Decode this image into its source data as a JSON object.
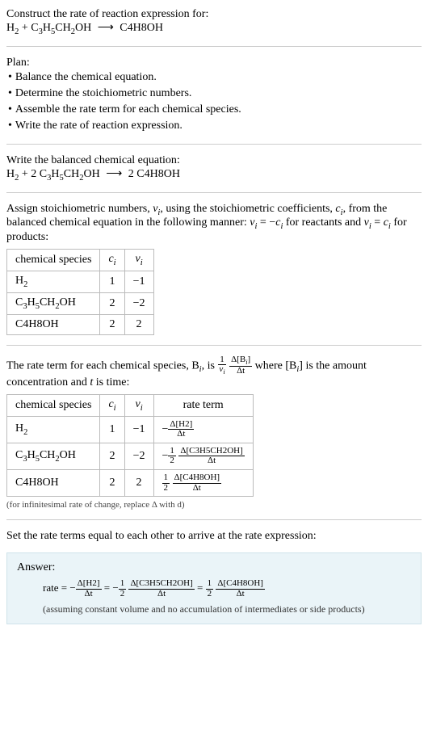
{
  "header": {
    "construct": "Construct the rate of reaction expression for:",
    "eq_unbalanced": {
      "lhs1": "H",
      "lhs1_sub": "2",
      "plus": " + ",
      "lhs2a": "C",
      "lhs2a_sub": "3",
      "lhs2b": "H",
      "lhs2b_sub": "5",
      "lhs2c": "CH",
      "lhs2c_sub": "2",
      "lhs2d": "OH",
      "arrow": "⟶",
      "rhs": "C4H8OH"
    }
  },
  "plan": {
    "title": "Plan:",
    "bullet": "•",
    "items": [
      "Balance the chemical equation.",
      "Determine the stoichiometric numbers.",
      "Assemble the rate term for each chemical species.",
      "Write the rate of reaction expression."
    ]
  },
  "balanced": {
    "title": "Write the balanced chemical equation:",
    "eq": {
      "lhs1": "H",
      "lhs1_sub": "2",
      "plus": " + 2 ",
      "lhs2a": "C",
      "lhs2a_sub": "3",
      "lhs2b": "H",
      "lhs2b_sub": "5",
      "lhs2c": "CH",
      "lhs2c_sub": "2",
      "lhs2d": "OH",
      "arrow": "⟶",
      "rcoef": " 2 ",
      "rhs": "C4H8OH"
    }
  },
  "assign": {
    "text_a": "Assign stoichiometric numbers, ",
    "nu_i": "ν",
    "nu_i_sub": "i",
    "text_b": ", using the stoichiometric coefficients, ",
    "c_i": "c",
    "c_i_sub": "i",
    "text_c": ", from the balanced chemical equation in the following manner: ",
    "eq1_l": "ν",
    "eq1_l_sub": "i",
    "eq1_mid": " = −",
    "eq1_r": "c",
    "eq1_r_sub": "i",
    "text_d": " for reactants and ",
    "eq2_l": "ν",
    "eq2_l_sub": "i",
    "eq2_mid": " = ",
    "eq2_r": "c",
    "eq2_r_sub": "i",
    "text_e": " for products:"
  },
  "table1": {
    "h1": "chemical species",
    "h2": "c",
    "h2_sub": "i",
    "h3": "ν",
    "h3_sub": "i",
    "rows": [
      {
        "sp_a": "H",
        "sp_a_sub": "2",
        "ci": "1",
        "nu": "−1"
      },
      {
        "sp_a": "C",
        "sp_a_sub": "3",
        "sp_b": "H",
        "sp_b_sub": "5",
        "sp_c": "CH",
        "sp_c_sub": "2",
        "sp_d": "OH",
        "ci": "2",
        "nu": "−2"
      },
      {
        "sp_a": "C4H8OH",
        "ci": "2",
        "nu": "2"
      }
    ]
  },
  "rateterm_intro": {
    "a": "The rate term for each chemical species, B",
    "a_sub": "i",
    "b": ", is ",
    "f1_num": "1",
    "f1_den_a": "ν",
    "f1_den_sub": "i",
    "f2_num_a": "Δ[B",
    "f2_num_sub": "i",
    "f2_num_b": "]",
    "f2_den": "Δt",
    "c": " where [B",
    "c_sub": "i",
    "d": "] is the amount concentration and ",
    "t": "t",
    "e": " is time:"
  },
  "table2": {
    "h1": "chemical species",
    "h2": "c",
    "h2_sub": "i",
    "h3": "ν",
    "h3_sub": "i",
    "h4": "rate term",
    "rows": [
      {
        "sp_a": "H",
        "sp_a_sub": "2",
        "ci": "1",
        "nu": "−1",
        "neg": "−",
        "coef_num": "",
        "coef_den": "",
        "dnum": "Δ[H2]",
        "dden": "Δt"
      },
      {
        "sp_a": "C",
        "sp_a_sub": "3",
        "sp_b": "H",
        "sp_b_sub": "5",
        "sp_c": "CH",
        "sp_c_sub": "2",
        "sp_d": "OH",
        "ci": "2",
        "nu": "−2",
        "neg": "−",
        "coef_num": "1",
        "coef_den": "2",
        "dnum": "Δ[C3H5CH2OH]",
        "dden": "Δt"
      },
      {
        "sp_a": "C4H8OH",
        "ci": "2",
        "nu": "2",
        "neg": "",
        "coef_num": "1",
        "coef_den": "2",
        "dnum": "Δ[C4H8OH]",
        "dden": "Δt"
      }
    ]
  },
  "infinitesimal": "(for infinitesimal rate of change, replace Δ with d)",
  "setequal": "Set the rate terms equal to each other to arrive at the rate expression:",
  "answer": {
    "label": "Answer:",
    "rate": "rate = ",
    "t1_neg": "−",
    "t1_num": "Δ[H2]",
    "t1_den": "Δt",
    "eq": " = ",
    "t2_neg": "−",
    "t2_cnum": "1",
    "t2_cden": "2",
    "t2_num": "Δ[C3H5CH2OH]",
    "t2_den": "Δt",
    "t3_cnum": "1",
    "t3_cden": "2",
    "t3_num": "Δ[C4H8OH]",
    "t3_den": "Δt",
    "assume": "(assuming constant volume and no accumulation of intermediates or side products)"
  },
  "colors": {
    "rule": "#cccccc",
    "table_border": "#bbbbbb",
    "answer_bg": "#eaf4f8",
    "answer_border": "#cfe3ea",
    "text": "#000000"
  }
}
